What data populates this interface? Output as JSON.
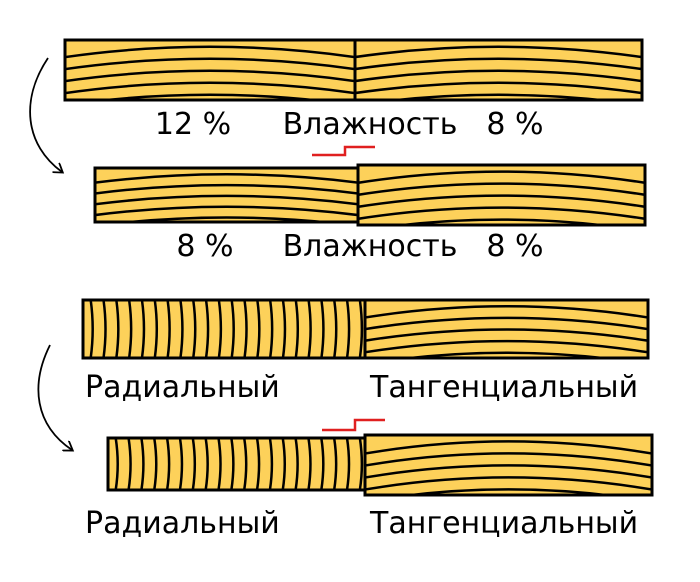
{
  "moisture_rows": [
    {
      "left": "12 %",
      "middle": "Влажность",
      "right": "8 %"
    },
    {
      "left": "8 %",
      "middle": "Влажность",
      "right": "8 %"
    }
  ],
  "cut_rows": [
    {
      "left": "Радиальный",
      "right": "Тангенциальный"
    },
    {
      "left": "Радиальный",
      "right": "Тангенциальный"
    }
  ]
}
